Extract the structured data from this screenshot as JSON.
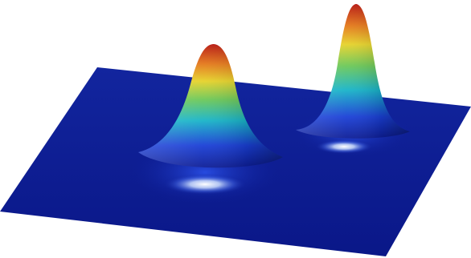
{
  "image": {
    "subject": "3D surface plot",
    "colormap": [
      "#1a1a9a",
      "#1a5fd6",
      "#1ab0c8",
      "#5ac860",
      "#e6d22a",
      "#e06a10",
      "#b01a10"
    ],
    "plane_color": "#0d1d96",
    "peaks": [
      {
        "label": "left-peak",
        "relative_height": 0.82
      },
      {
        "label": "right-peak",
        "relative_height": 1.0
      }
    ]
  }
}
